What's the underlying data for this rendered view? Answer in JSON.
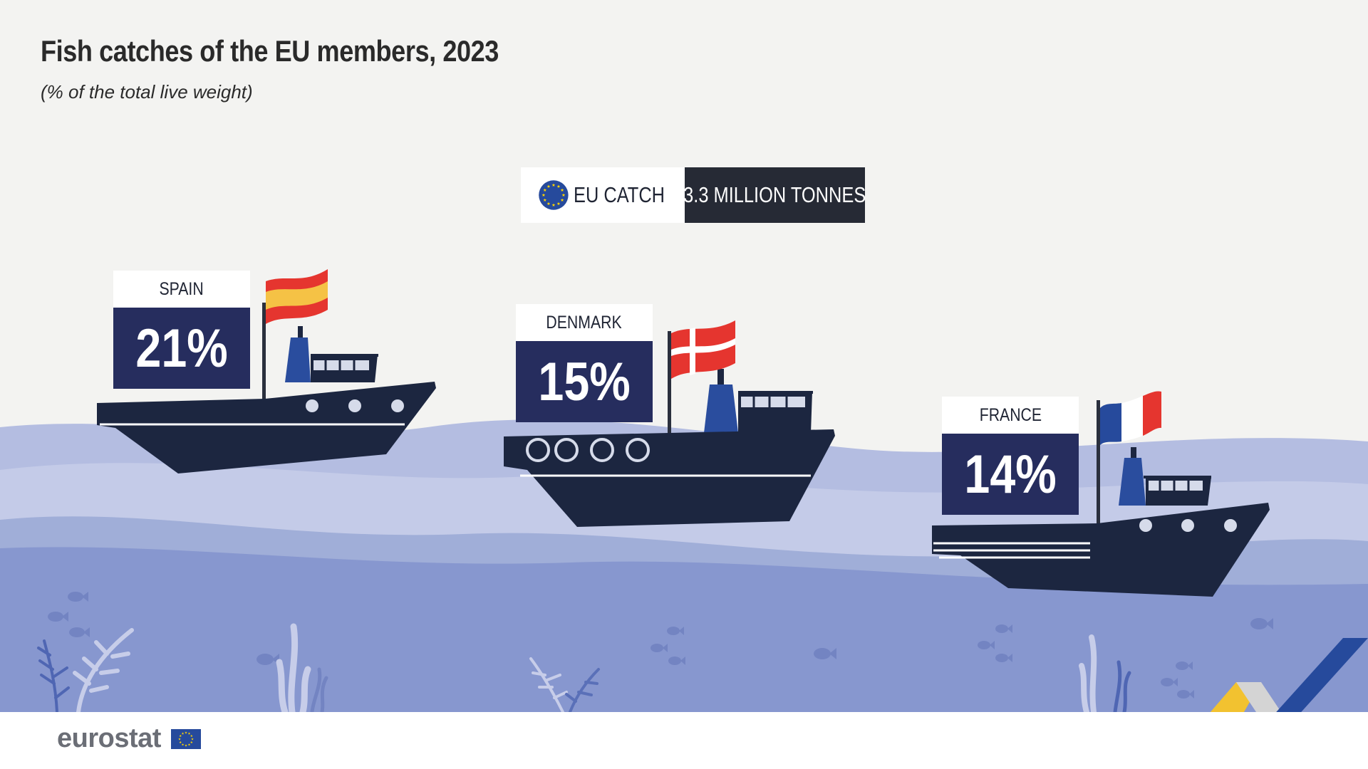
{
  "title": "Fish catches of the EU members, 2023",
  "subtitle": "(% of the total live weight)",
  "eu_total": {
    "label": "EU CATCH",
    "value": "3.3 MILLION TONNES"
  },
  "brand": "eurostat",
  "colors": {
    "background": "#f3f3f1",
    "label_box": "#262d5e",
    "ship_hull": "#1c2640",
    "sea_light": "#c2c9e6",
    "sea_mid": "#a0aed8",
    "sea_deep": "#8797cf",
    "eu_blue": "#264a9c",
    "eu_star": "#ffd500"
  },
  "chart_data": {
    "type": "bar",
    "categories": [
      "SPAIN",
      "DENMARK",
      "FRANCE"
    ],
    "values": [
      21,
      15,
      14
    ],
    "value_labels": [
      "21%",
      "15%",
      "14%"
    ],
    "unit": "%",
    "flags": [
      "spain-flag-icon",
      "denmark-flag-icon",
      "france-flag-icon"
    ],
    "icons": [
      "fishing-boat-icon",
      "fish-icon",
      "seaweed-icon",
      "eu-flag-icon"
    ]
  }
}
